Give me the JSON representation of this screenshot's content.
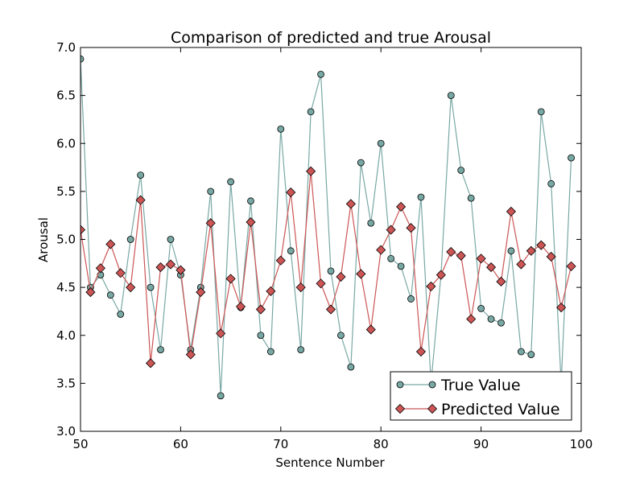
{
  "chart_data": {
    "type": "line",
    "title": "Comparison of predicted and true Arousal",
    "xlabel": "Sentence Number",
    "ylabel": "Arousal",
    "xlim": [
      50,
      100
    ],
    "ylim": [
      3.0,
      7.0
    ],
    "xticks": [
      "50",
      "60",
      "70",
      "80",
      "90",
      "100"
    ],
    "yticks": [
      "3.0",
      "3.5",
      "4.0",
      "4.5",
      "5.0",
      "5.5",
      "6.0",
      "6.5",
      "7.0"
    ],
    "grid": false,
    "legend_position": "lower-right",
    "x": [
      50,
      51,
      52,
      53,
      54,
      55,
      56,
      57,
      58,
      59,
      60,
      61,
      62,
      63,
      64,
      65,
      66,
      67,
      68,
      69,
      70,
      71,
      72,
      73,
      74,
      75,
      76,
      77,
      78,
      79,
      80,
      81,
      82,
      83,
      84,
      85,
      86,
      87,
      88,
      89,
      90,
      91,
      92,
      93,
      94,
      95,
      96,
      97,
      98,
      99
    ],
    "series": [
      {
        "name": "True Value",
        "color": "#78a8a4",
        "marker": "circle",
        "values": [
          6.88,
          4.5,
          4.63,
          4.42,
          4.22,
          5.0,
          5.67,
          4.5,
          3.85,
          5.0,
          4.63,
          3.85,
          4.5,
          5.5,
          3.37,
          5.6,
          4.29,
          5.4,
          4.0,
          3.83,
          6.15,
          4.88,
          3.85,
          6.33,
          6.72,
          4.67,
          4.0,
          3.67,
          5.8,
          5.17,
          6.0,
          4.8,
          4.72,
          4.38,
          5.44,
          3.5,
          4.63,
          6.5,
          5.72,
          5.43,
          4.28,
          4.17,
          4.13,
          4.88,
          3.83,
          3.8,
          6.33,
          5.58,
          3.5,
          5.85
        ]
      },
      {
        "name": "Predicted Value",
        "color": "#cc5555",
        "marker": "diamond",
        "values": [
          5.1,
          4.45,
          4.7,
          4.95,
          4.65,
          4.5,
          5.41,
          3.71,
          4.71,
          4.74,
          4.68,
          3.8,
          4.45,
          5.17,
          4.02,
          4.59,
          4.3,
          5.18,
          4.27,
          4.46,
          4.78,
          5.49,
          4.5,
          5.71,
          4.54,
          4.27,
          4.61,
          5.37,
          4.64,
          4.06,
          4.89,
          5.1,
          5.34,
          5.12,
          3.83,
          4.51,
          4.63,
          4.87,
          4.83,
          4.17,
          4.8,
          4.71,
          4.56,
          5.29,
          4.74,
          4.88,
          4.94,
          4.82,
          4.29,
          4.72
        ]
      }
    ]
  }
}
